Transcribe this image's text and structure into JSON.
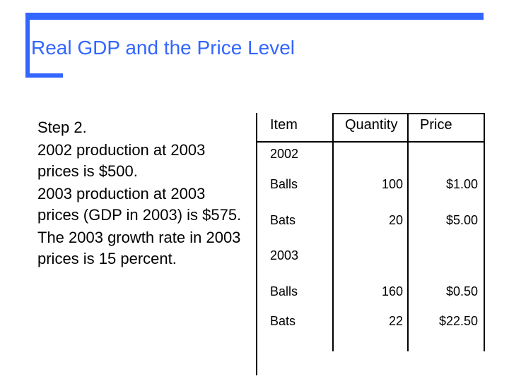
{
  "slide": {
    "title": "Real GDP and the Price Level",
    "body": [
      "Step 2.",
      "2002 production at 2003 prices is $500.",
      "2003 production at 2003 prices (GDP in 2003) is $575.",
      "The 2003 growth rate in 2003 prices is 15 percent."
    ]
  },
  "table": {
    "headers": {
      "item": "Item",
      "quantity": "Quantity",
      "price": "Price"
    },
    "year_2002": "2002",
    "rows_2002": [
      {
        "item": "Balls",
        "quantity": "100",
        "price": "$1.00"
      },
      {
        "item": "Bats",
        "quantity": "20",
        "price": "$5.00"
      }
    ],
    "year_2003": "2003",
    "rows_2003": [
      {
        "item": "Balls",
        "quantity": "160",
        "price": "$0.50"
      },
      {
        "item": "Bats",
        "quantity": "22",
        "price": "$22.50"
      }
    ]
  }
}
